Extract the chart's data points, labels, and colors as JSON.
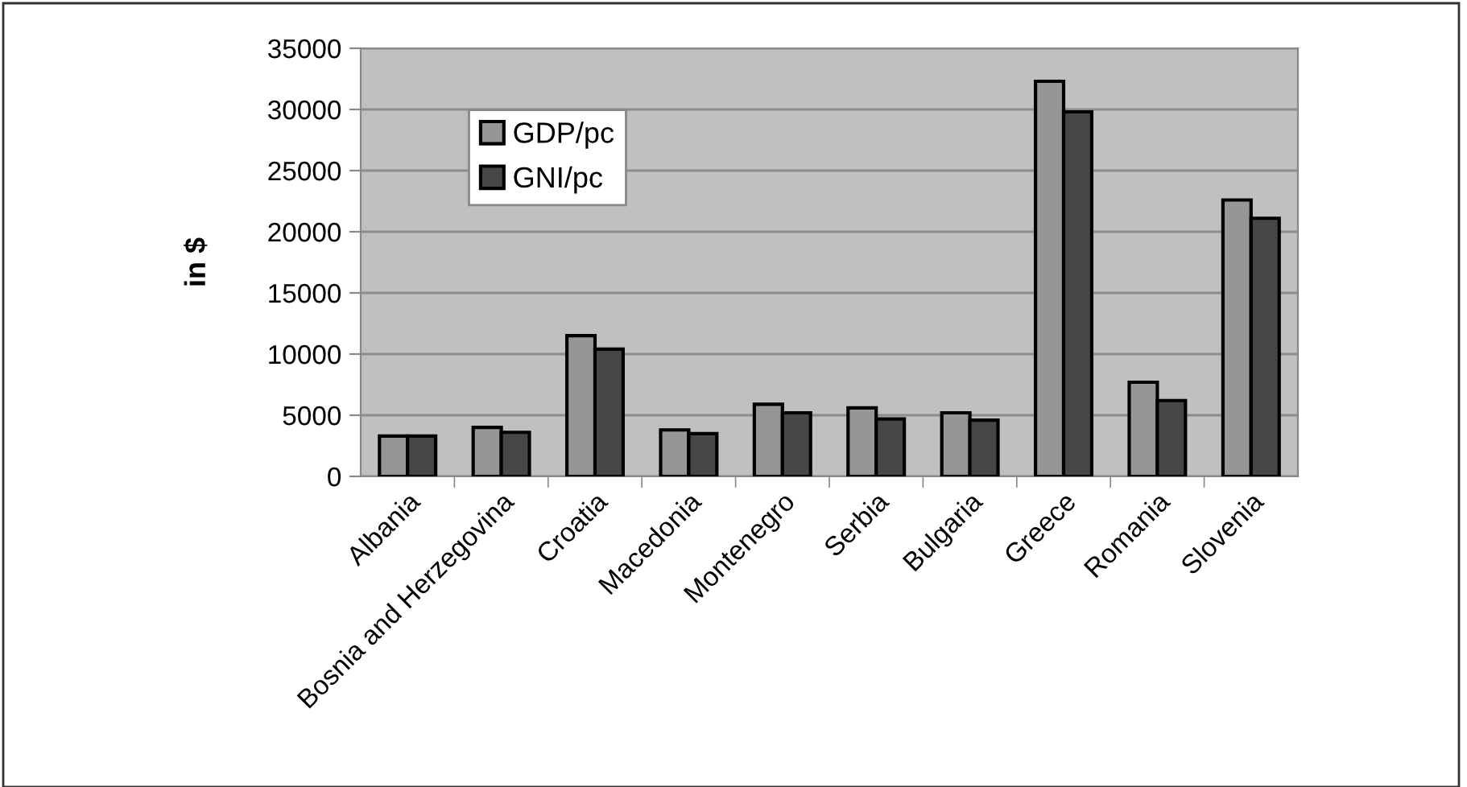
{
  "chart_data": {
    "type": "bar",
    "ylabel": "in $",
    "categories": [
      "Albania",
      "Bosnia and Herzegovina",
      "Croatia",
      "Macedonia",
      "Montenegro",
      "Serbia",
      "Bulgaria",
      "Greece",
      "Romania",
      "Slovenia"
    ],
    "series": [
      {
        "name": "GDP/pc",
        "color": "#969696",
        "values": [
          3300,
          4000,
          11500,
          3800,
          5900,
          5600,
          5200,
          32300,
          7700,
          22600
        ]
      },
      {
        "name": "GNI/pc",
        "color": "#474747",
        "values": [
          3300,
          3600,
          10400,
          3500,
          5200,
          4700,
          4600,
          29800,
          6200,
          21100
        ]
      }
    ],
    "ylim": [
      0,
      35000
    ],
    "yticks": [
      0,
      5000,
      10000,
      15000,
      20000,
      25000,
      30000,
      35000
    ],
    "grid": "y",
    "legend": "top left"
  }
}
